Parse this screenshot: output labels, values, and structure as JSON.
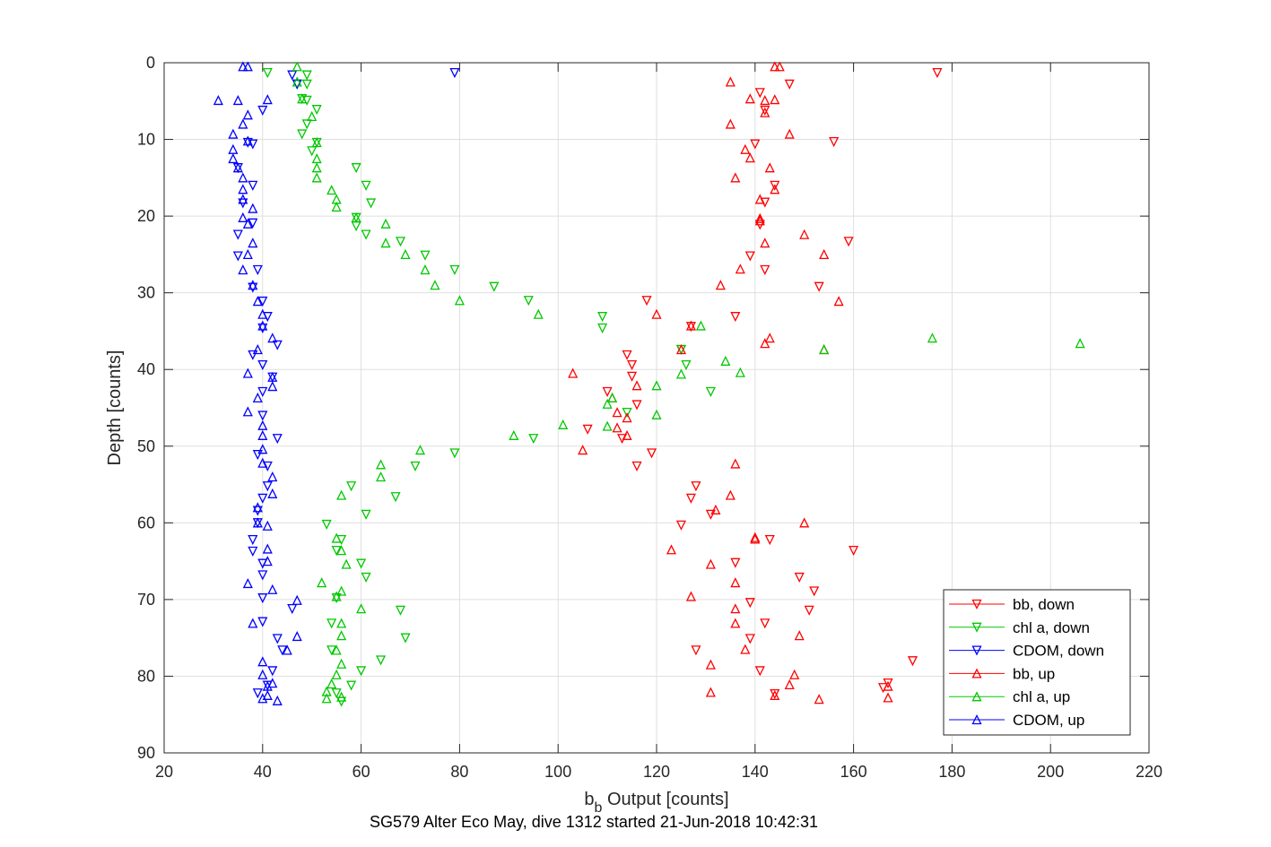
{
  "chart_data": {
    "type": "scatter",
    "title": "SG579 Alter Eco May, dive 1312 started 21-Jun-2018 10:42:31",
    "xlabel": "b",
    "xlabel_sub": "b",
    "xlabel_rest": " Output [counts]",
    "ylabel": "Depth [counts]",
    "xlim": [
      20,
      220
    ],
    "ylim": [
      0,
      90
    ],
    "y_reversed": true,
    "grid": true,
    "legend_position": "bottom-right",
    "x_ticks": [
      "20",
      "40",
      "60",
      "80",
      "100",
      "120",
      "140",
      "160",
      "180",
      "200",
      "220"
    ],
    "y_ticks": [
      "0",
      "10",
      "20",
      "30",
      "40",
      "50",
      "60",
      "70",
      "80",
      "90"
    ],
    "series": [
      {
        "name": "bb, down",
        "color": "#ff0000",
        "marker": "triangle-down",
        "points": [
          [
            177,
            1.3
          ],
          [
            147,
            2.8
          ],
          [
            141,
            3.9
          ],
          [
            142,
            6.2
          ],
          [
            156,
            10.3
          ],
          [
            140,
            10.6
          ],
          [
            144,
            16.0
          ],
          [
            142,
            18.2
          ],
          [
            141,
            21.1
          ],
          [
            159,
            23.3
          ],
          [
            139,
            25.2
          ],
          [
            142,
            27.0
          ],
          [
            153,
            29.2
          ],
          [
            118,
            31.0
          ],
          [
            136,
            33.1
          ],
          [
            127,
            34.4
          ],
          [
            125,
            37.4
          ],
          [
            114,
            38.1
          ],
          [
            115,
            39.4
          ],
          [
            115,
            40.9
          ],
          [
            110,
            42.9
          ],
          [
            116,
            44.6
          ],
          [
            106,
            47.8
          ],
          [
            113,
            49.0
          ],
          [
            119,
            50.9
          ],
          [
            116,
            52.6
          ],
          [
            128,
            55.2
          ],
          [
            127,
            56.8
          ],
          [
            131,
            58.9
          ],
          [
            125,
            60.3
          ],
          [
            143,
            62.2
          ],
          [
            160,
            63.6
          ],
          [
            136,
            65.2
          ],
          [
            149,
            67.1
          ],
          [
            152,
            68.9
          ],
          [
            139,
            70.4
          ],
          [
            151,
            71.4
          ],
          [
            142,
            73.1
          ],
          [
            139,
            75.1
          ],
          [
            128,
            76.6
          ],
          [
            172,
            78.0
          ],
          [
            141,
            79.3
          ],
          [
            167,
            80.9
          ],
          [
            166,
            81.5
          ],
          [
            144,
            82.3
          ]
        ]
      },
      {
        "name": "chl a, down",
        "color": "#00c800",
        "marker": "triangle-down",
        "points": [
          [
            41,
            1.3
          ],
          [
            49,
            1.6
          ],
          [
            47,
            2.8
          ],
          [
            49,
            2.8
          ],
          [
            48,
            4.7
          ],
          [
            49,
            4.9
          ],
          [
            51,
            6.1
          ],
          [
            49,
            8.0
          ],
          [
            48,
            9.3
          ],
          [
            51,
            10.4
          ],
          [
            50,
            11.5
          ],
          [
            59,
            13.7
          ],
          [
            61,
            16.0
          ],
          [
            62,
            18.3
          ],
          [
            59,
            20.2
          ],
          [
            59,
            21.3
          ],
          [
            61,
            22.4
          ],
          [
            68,
            23.3
          ],
          [
            73,
            25.1
          ],
          [
            79,
            27.0
          ],
          [
            87,
            29.2
          ],
          [
            94,
            31.0
          ],
          [
            109,
            33.1
          ],
          [
            109,
            34.6
          ],
          [
            125,
            37.4
          ],
          [
            126,
            39.4
          ],
          [
            131,
            42.9
          ],
          [
            114,
            45.6
          ],
          [
            95,
            49.0
          ],
          [
            79,
            50.9
          ],
          [
            71,
            52.6
          ],
          [
            58,
            55.2
          ],
          [
            67,
            56.6
          ],
          [
            61,
            58.9
          ],
          [
            53,
            60.2
          ],
          [
            56,
            62.2
          ],
          [
            55,
            63.6
          ],
          [
            60,
            65.3
          ],
          [
            61,
            67.1
          ],
          [
            55,
            69.8
          ],
          [
            68,
            71.4
          ],
          [
            54,
            73.1
          ],
          [
            69,
            75.0
          ],
          [
            54,
            76.6
          ],
          [
            64,
            77.9
          ],
          [
            60,
            79.3
          ],
          [
            58,
            81.2
          ],
          [
            55,
            82.2
          ],
          [
            56,
            83.3
          ]
        ]
      },
      {
        "name": "CDOM, down",
        "color": "#0000ff",
        "marker": "triangle-down",
        "points": [
          [
            79,
            1.3
          ],
          [
            46,
            1.6
          ],
          [
            47,
            2.8
          ],
          [
            40,
            6.2
          ],
          [
            37,
            10.4
          ],
          [
            38,
            10.6
          ],
          [
            35,
            13.7
          ],
          [
            38,
            16.0
          ],
          [
            36,
            18.3
          ],
          [
            38,
            20.9
          ],
          [
            35,
            22.4
          ],
          [
            35,
            25.2
          ],
          [
            39,
            27.0
          ],
          [
            38,
            29.3
          ],
          [
            40,
            31.1
          ],
          [
            41,
            33.1
          ],
          [
            40,
            34.6
          ],
          [
            43,
            36.8
          ],
          [
            38,
            38.1
          ],
          [
            40,
            39.4
          ],
          [
            42,
            41.0
          ],
          [
            40,
            42.9
          ],
          [
            40,
            46.0
          ],
          [
            43,
            49.0
          ],
          [
            39,
            51.1
          ],
          [
            41,
            52.6
          ],
          [
            41,
            55.2
          ],
          [
            40,
            56.8
          ],
          [
            39,
            58.4
          ],
          [
            39,
            60.0
          ],
          [
            38,
            62.2
          ],
          [
            38,
            63.7
          ],
          [
            40,
            65.3
          ],
          [
            40,
            66.8
          ],
          [
            40,
            69.8
          ],
          [
            46,
            71.2
          ],
          [
            40,
            72.9
          ],
          [
            43,
            75.1
          ],
          [
            44,
            76.6
          ],
          [
            42,
            79.3
          ],
          [
            39,
            82.2
          ],
          [
            41,
            81.2
          ]
        ]
      },
      {
        "name": "bb, up",
        "color": "#ff0000",
        "marker": "triangle-up",
        "points": [
          [
            145,
            0.5
          ],
          [
            144,
            0.5
          ],
          [
            135,
            2.5
          ],
          [
            139,
            4.7
          ],
          [
            142,
            4.9
          ],
          [
            144,
            4.8
          ],
          [
            142,
            6.5
          ],
          [
            135,
            8.0
          ],
          [
            147,
            9.3
          ],
          [
            138,
            11.3
          ],
          [
            139,
            12.4
          ],
          [
            143,
            13.7
          ],
          [
            136,
            15.0
          ],
          [
            144,
            16.5
          ],
          [
            141,
            17.8
          ],
          [
            141,
            20.3
          ],
          [
            141,
            20.6
          ],
          [
            150,
            22.4
          ],
          [
            142,
            23.5
          ],
          [
            154,
            25.0
          ],
          [
            137,
            26.9
          ],
          [
            133,
            29.0
          ],
          [
            157,
            31.1
          ],
          [
            120,
            32.8
          ],
          [
            127,
            34.3
          ],
          [
            143,
            35.9
          ],
          [
            142,
            36.6
          ],
          [
            125,
            37.4
          ],
          [
            154,
            37.4
          ],
          [
            103,
            40.5
          ],
          [
            111,
            43.7
          ],
          [
            112,
            45.6
          ],
          [
            116,
            42.1
          ],
          [
            114,
            46.3
          ],
          [
            112,
            47.6
          ],
          [
            114,
            48.6
          ],
          [
            105,
            50.5
          ],
          [
            136,
            52.3
          ],
          [
            135,
            56.4
          ],
          [
            132,
            58.3
          ],
          [
            140,
            61.9
          ],
          [
            150,
            60.0
          ],
          [
            123,
            63.5
          ],
          [
            140,
            62.1
          ],
          [
            131,
            65.4
          ],
          [
            136,
            67.8
          ],
          [
            127,
            69.6
          ],
          [
            136,
            71.2
          ],
          [
            136,
            73.1
          ],
          [
            149,
            74.7
          ],
          [
            138,
            76.5
          ],
          [
            131,
            78.5
          ],
          [
            148,
            79.8
          ],
          [
            147,
            81.1
          ],
          [
            167,
            81.3
          ],
          [
            144,
            82.5
          ],
          [
            131,
            82.1
          ],
          [
            167,
            82.8
          ],
          [
            153,
            83.0
          ]
        ]
      },
      {
        "name": "chl a, up",
        "color": "#00c800",
        "marker": "triangle-up",
        "points": [
          [
            47,
            0.5
          ],
          [
            47,
            2.5
          ],
          [
            48,
            4.7
          ],
          [
            50,
            7.0
          ],
          [
            51,
            10.4
          ],
          [
            51,
            12.5
          ],
          [
            51,
            13.7
          ],
          [
            51,
            15.0
          ],
          [
            54,
            16.6
          ],
          [
            55,
            17.8
          ],
          [
            55,
            18.8
          ],
          [
            59,
            20.2
          ],
          [
            65,
            21.0
          ],
          [
            65,
            23.5
          ],
          [
            69,
            25.0
          ],
          [
            73,
            27.0
          ],
          [
            75,
            29.0
          ],
          [
            80,
            31.0
          ],
          [
            96,
            32.8
          ],
          [
            129,
            34.3
          ],
          [
            176,
            35.9
          ],
          [
            206,
            36.6
          ],
          [
            154,
            37.4
          ],
          [
            134,
            38.9
          ],
          [
            137,
            40.4
          ],
          [
            120,
            42.1
          ],
          [
            125,
            40.6
          ],
          [
            111,
            43.7
          ],
          [
            110,
            44.5
          ],
          [
            120,
            45.9
          ],
          [
            101,
            47.2
          ],
          [
            91,
            48.6
          ],
          [
            110,
            47.4
          ],
          [
            72,
            50.5
          ],
          [
            64,
            52.4
          ],
          [
            64,
            54.0
          ],
          [
            56,
            56.4
          ],
          [
            55,
            62.0
          ],
          [
            56,
            63.6
          ],
          [
            57,
            65.4
          ],
          [
            52,
            67.8
          ],
          [
            56,
            68.9
          ],
          [
            55,
            69.6
          ],
          [
            60,
            71.2
          ],
          [
            56,
            73.1
          ],
          [
            56,
            74.7
          ],
          [
            55,
            76.6
          ],
          [
            56,
            78.4
          ],
          [
            55,
            79.8
          ],
          [
            54,
            81.0
          ],
          [
            53,
            82.0
          ],
          [
            53,
            82.9
          ],
          [
            56,
            82.7
          ]
        ]
      },
      {
        "name": "CDOM, up",
        "color": "#0000ff",
        "marker": "triangle-up",
        "points": [
          [
            36,
            0.5
          ],
          [
            37,
            0.5
          ],
          [
            31,
            4.9
          ],
          [
            35,
            4.9
          ],
          [
            41,
            4.8
          ],
          [
            37,
            6.8
          ],
          [
            36,
            8.0
          ],
          [
            34,
            9.3
          ],
          [
            37,
            10.2
          ],
          [
            34,
            11.3
          ],
          [
            34,
            12.5
          ],
          [
            35,
            13.7
          ],
          [
            36,
            15.0
          ],
          [
            36,
            16.5
          ],
          [
            36,
            17.8
          ],
          [
            38,
            19.0
          ],
          [
            36,
            20.2
          ],
          [
            37,
            21.0
          ],
          [
            38,
            23.5
          ],
          [
            37,
            25.0
          ],
          [
            36,
            27.0
          ],
          [
            38,
            29.0
          ],
          [
            39,
            31.1
          ],
          [
            40,
            32.8
          ],
          [
            40,
            34.3
          ],
          [
            42,
            35.9
          ],
          [
            39,
            37.4
          ],
          [
            37,
            40.5
          ],
          [
            42,
            41.0
          ],
          [
            42,
            42.2
          ],
          [
            39,
            43.7
          ],
          [
            37,
            45.5
          ],
          [
            40,
            47.3
          ],
          [
            40,
            48.6
          ],
          [
            40,
            50.4
          ],
          [
            40,
            52.2
          ],
          [
            42,
            54.0
          ],
          [
            42,
            56.2
          ],
          [
            39,
            58.0
          ],
          [
            39,
            60.0
          ],
          [
            41,
            60.4
          ],
          [
            41,
            63.4
          ],
          [
            41,
            65.0
          ],
          [
            37,
            67.9
          ],
          [
            42,
            68.7
          ],
          [
            47,
            70.1
          ],
          [
            38,
            73.1
          ],
          [
            47,
            74.8
          ],
          [
            45,
            76.6
          ],
          [
            40,
            78.1
          ],
          [
            40,
            79.8
          ],
          [
            42,
            80.9
          ],
          [
            41,
            81.3
          ],
          [
            40,
            82.9
          ],
          [
            43,
            83.2
          ],
          [
            41,
            82.5
          ]
        ]
      }
    ]
  }
}
